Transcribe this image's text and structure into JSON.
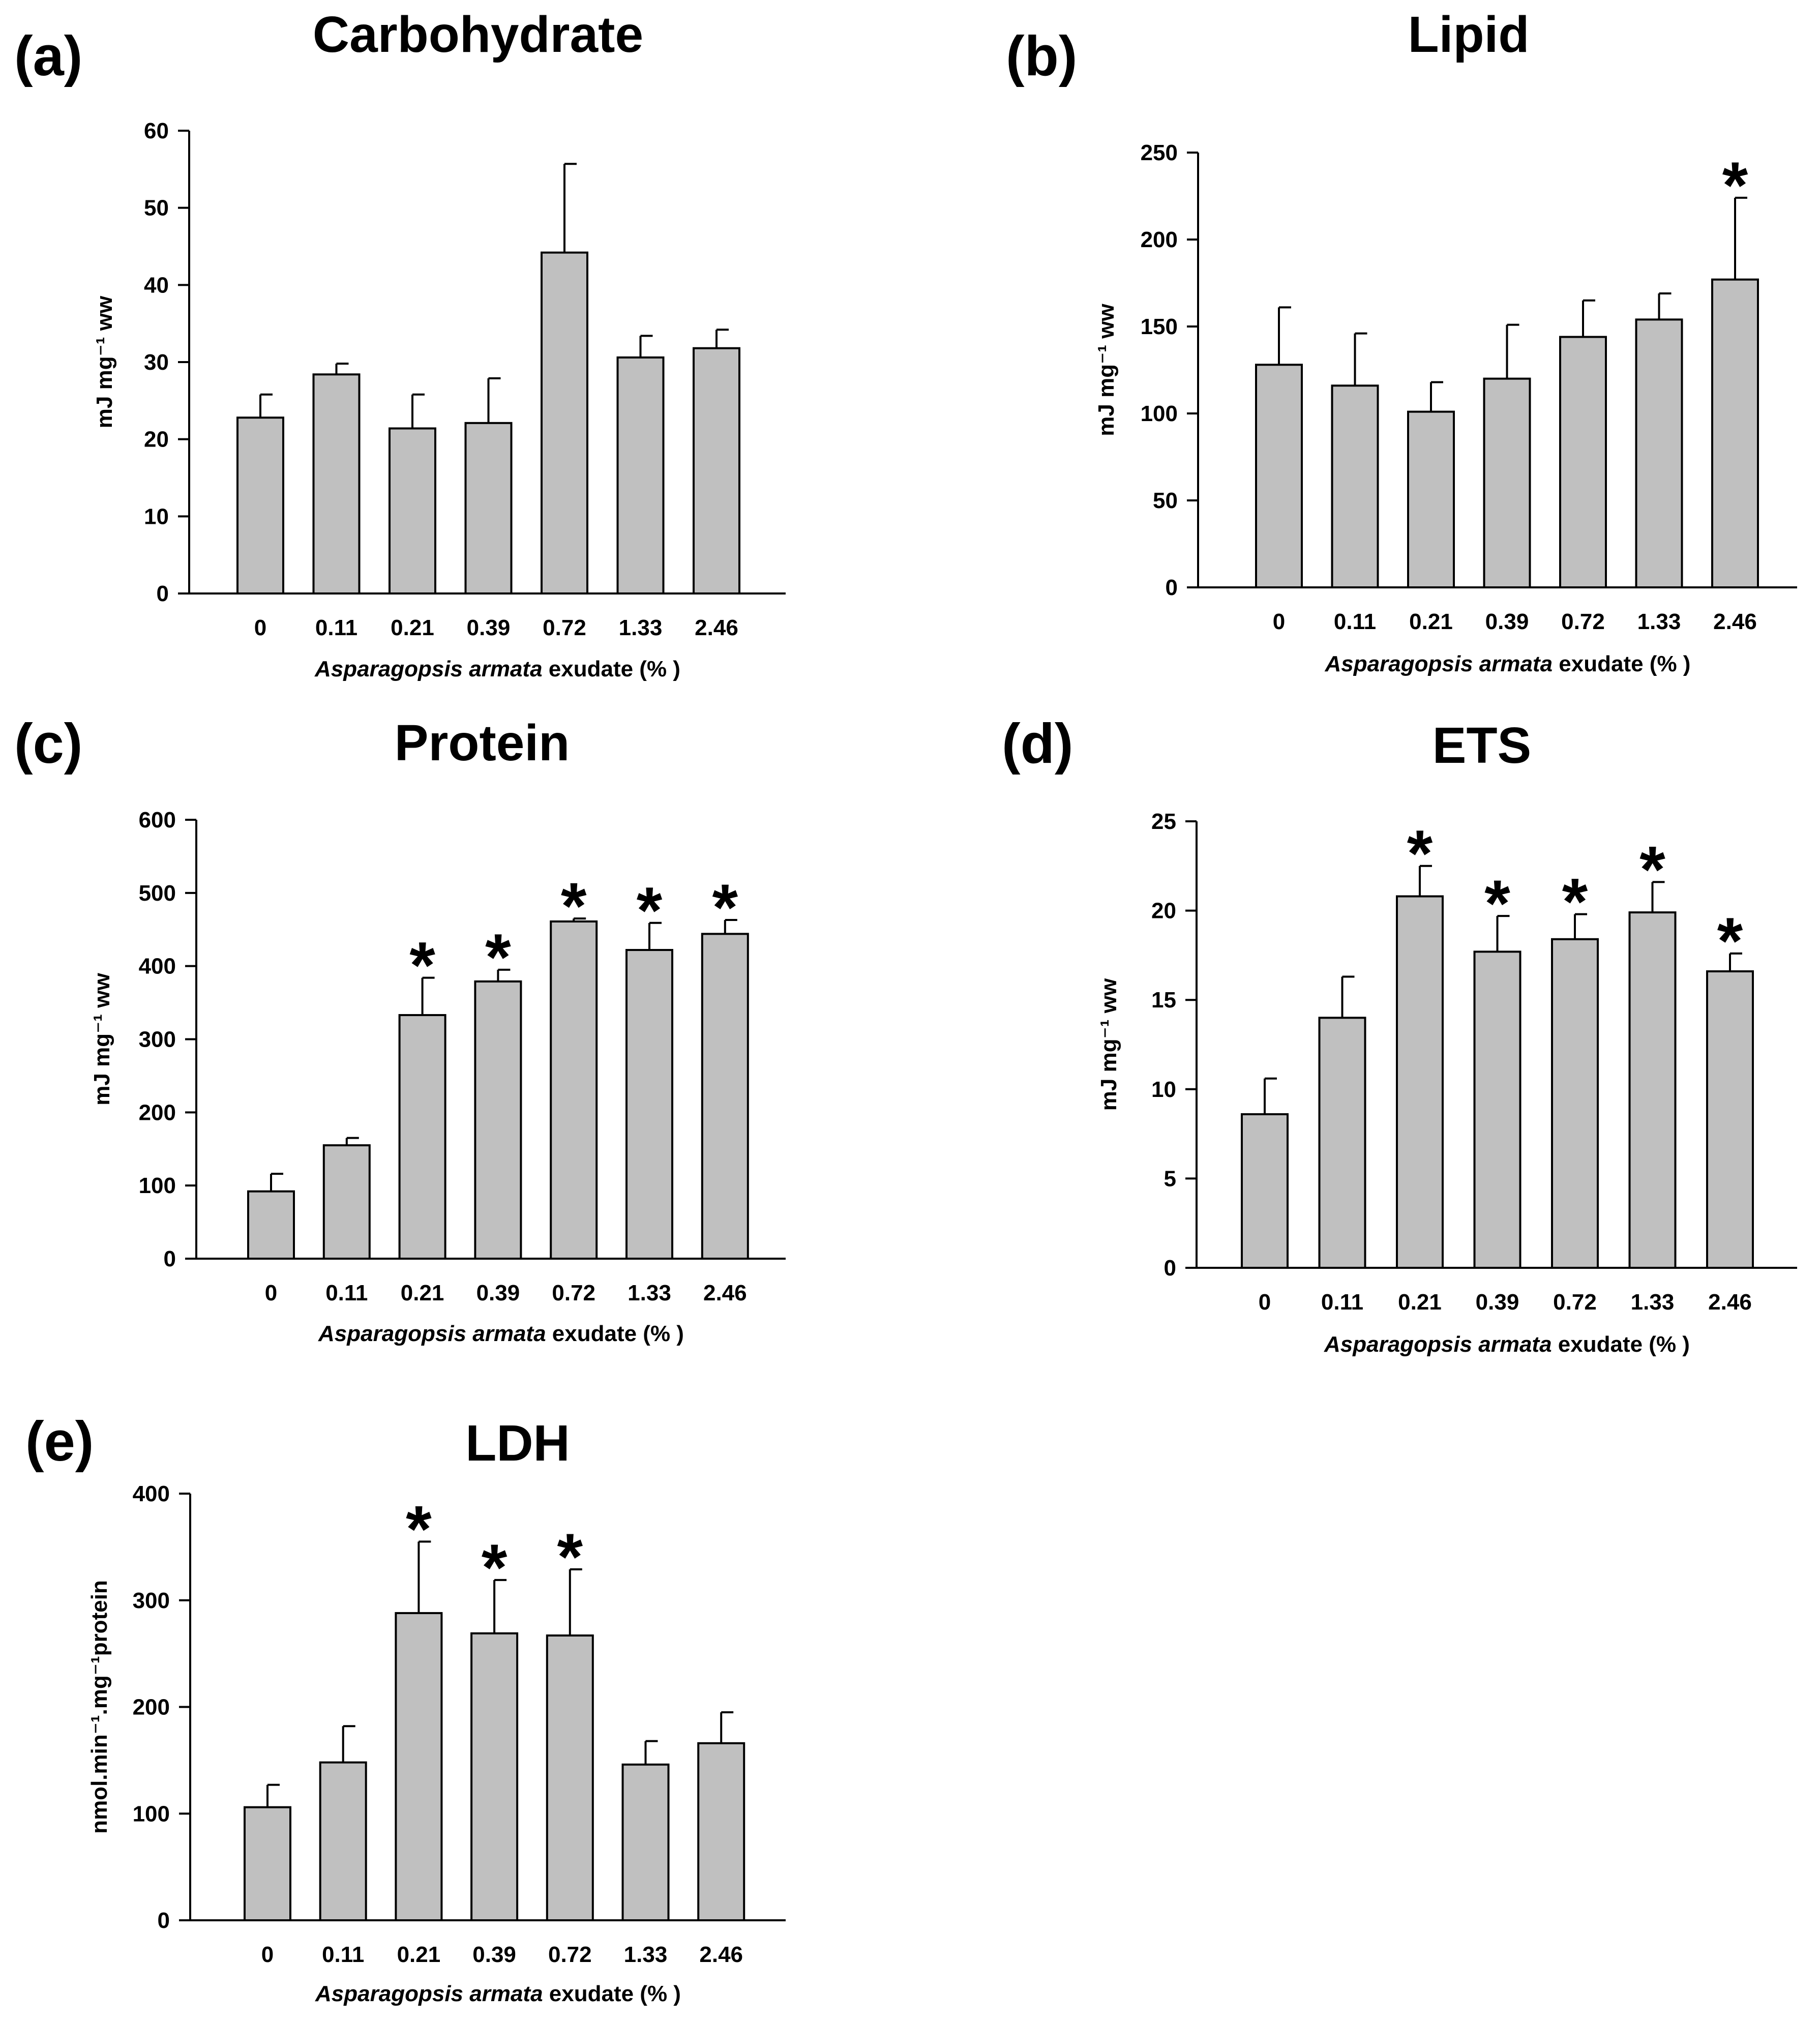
{
  "colors": {
    "bar_fill": "#c0c0c0",
    "bar_stroke": "#000000",
    "axis": "#000000"
  },
  "chart_data": [
    {
      "panel_letter": "(a)",
      "type": "bar",
      "title": "Carbohydrate",
      "categories": [
        "0",
        "0.11",
        "0.21",
        "0.39",
        "0.72",
        "1.33",
        "2.46"
      ],
      "values": [
        22.8,
        28.4,
        21.4,
        22.1,
        44.2,
        30.6,
        31.8
      ],
      "error_upper": [
        3.0,
        1.4,
        4.4,
        5.8,
        11.5,
        2.8,
        2.4
      ],
      "significant": [
        false,
        false,
        false,
        false,
        false,
        false,
        false
      ],
      "ylim": [
        0,
        60
      ],
      "yticks": [
        "0",
        "10",
        "20",
        "30",
        "40",
        "50",
        "60"
      ],
      "ylabel": "mJ mg⁻¹ ww",
      "xlabel_italic": "Asparagopsis armata",
      "xlabel_rest": " exudate (% )"
    },
    {
      "panel_letter": "(b)",
      "type": "bar",
      "title": "Lipid",
      "categories": [
        "0",
        "0.11",
        "0.21",
        "0.39",
        "0.72",
        "1.33",
        "2.46"
      ],
      "values": [
        128,
        116,
        101,
        120,
        144,
        154,
        177
      ],
      "error_upper": [
        33,
        30,
        17,
        31,
        21,
        15,
        47
      ],
      "significant": [
        false,
        false,
        false,
        false,
        false,
        false,
        true
      ],
      "ylim": [
        0,
        250
      ],
      "yticks": [
        "0",
        "50",
        "100",
        "150",
        "200",
        "250"
      ],
      "ylabel": "mJ mg⁻¹ ww",
      "xlabel_italic": "Asparagopsis armata",
      "xlabel_rest": " exudate (% )"
    },
    {
      "panel_letter": "(c)",
      "type": "bar",
      "title": "Protein",
      "categories": [
        "0",
        "0.11",
        "0.21",
        "0.39",
        "0.72",
        "1.33",
        "2.46"
      ],
      "values": [
        92,
        155,
        333,
        379,
        461,
        422,
        444
      ],
      "error_upper": [
        24,
        10,
        51,
        16,
        4,
        37,
        19
      ],
      "significant": [
        false,
        false,
        true,
        true,
        true,
        true,
        true
      ],
      "ylim": [
        0,
        600
      ],
      "yticks": [
        "0",
        "100",
        "200",
        "300",
        "400",
        "500",
        "600"
      ],
      "ylabel": "mJ mg⁻¹ ww",
      "xlabel_italic": "Asparagopsis armata",
      "xlabel_rest": " exudate (% )"
    },
    {
      "panel_letter": "(d)",
      "type": "bar",
      "title": "ETS",
      "categories": [
        "0",
        "0.11",
        "0.21",
        "0.39",
        "0.72",
        "1.33",
        "2.46"
      ],
      "values": [
        8.6,
        14.0,
        20.8,
        17.7,
        18.4,
        19.9,
        16.6
      ],
      "error_upper": [
        2.0,
        2.3,
        1.7,
        2.0,
        1.4,
        1.7,
        1.0
      ],
      "significant": [
        false,
        false,
        true,
        true,
        true,
        true,
        true
      ],
      "ylim": [
        0,
        25
      ],
      "yticks": [
        "0",
        "5",
        "10",
        "15",
        "20",
        "25"
      ],
      "ylabel": "mJ mg⁻¹ ww",
      "xlabel_italic": "Asparagopsis armata",
      "xlabel_rest": " exudate (% )"
    },
    {
      "panel_letter": "(e)",
      "type": "bar",
      "title": "LDH",
      "categories": [
        "0",
        "0.11",
        "0.21",
        "0.39",
        "0.72",
        "1.33",
        "2.46"
      ],
      "values": [
        106,
        148,
        288,
        269,
        267,
        146,
        166
      ],
      "error_upper": [
        21,
        34,
        67,
        50,
        62,
        22,
        29
      ],
      "significant": [
        false,
        false,
        true,
        true,
        true,
        false,
        false
      ],
      "ylim": [
        0,
        400
      ],
      "yticks": [
        "0",
        "100",
        "200",
        "300",
        "400"
      ],
      "ylabel": "nmol.min⁻¹.mg⁻¹protein",
      "xlabel_italic": "Asparagopsis armata",
      "xlabel_rest": " exudate (% )"
    }
  ]
}
